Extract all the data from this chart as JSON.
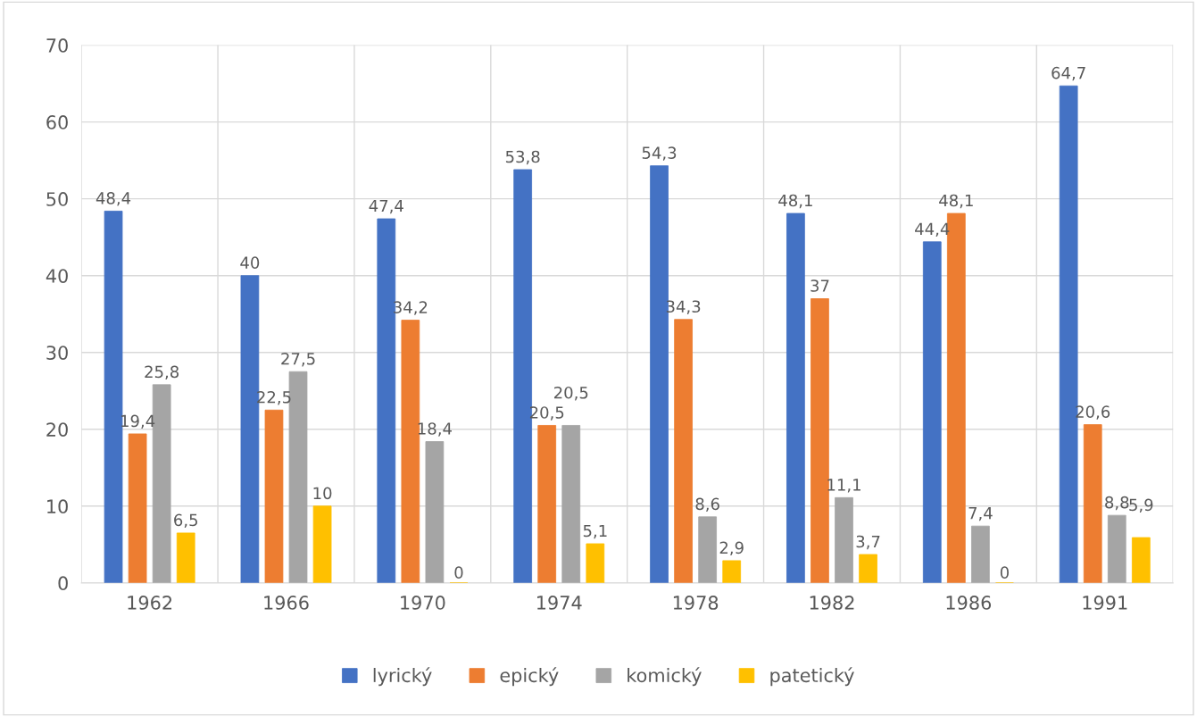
{
  "chart_data": {
    "type": "bar",
    "categories": [
      "1962",
      "1966",
      "1970",
      "1974",
      "1978",
      "1982",
      "1986",
      "1991"
    ],
    "series": [
      {
        "name": "lyrický",
        "color": "#4472c4",
        "values": [
          48.4,
          40,
          47.4,
          53.8,
          54.3,
          48.1,
          44.4,
          64.7
        ],
        "value_labels": [
          "48,4",
          "40",
          "47,4",
          "53,8",
          "54,3",
          "48,1",
          "44,4",
          "64,7"
        ]
      },
      {
        "name": "epický",
        "color": "#ed7d31",
        "values": [
          19.4,
          22.5,
          34.2,
          20.5,
          34.3,
          37,
          48.1,
          20.6
        ],
        "value_labels": [
          "19,4",
          "22,5",
          "34,2",
          "20,5",
          "34,3",
          "37",
          "48,1",
          "20,6"
        ]
      },
      {
        "name": "komický",
        "color": "#a5a5a5",
        "values": [
          25.8,
          27.5,
          18.4,
          20.5,
          8.6,
          11.1,
          7.4,
          8.8
        ],
        "value_labels": [
          "25,8",
          "27,5",
          "18,4",
          "20,5",
          "8,6",
          "11,1",
          "7,4",
          "8,8"
        ]
      },
      {
        "name": "patetický",
        "color": "#ffc000",
        "values": [
          6.5,
          10,
          0,
          5.1,
          2.9,
          3.7,
          0,
          5.9
        ],
        "value_labels": [
          "6,5",
          "10",
          "0",
          "5,1",
          "2,9",
          "3,7",
          "0",
          "5,9"
        ]
      }
    ],
    "ylim": [
      0,
      70
    ],
    "yticks": [
      0,
      10,
      20,
      30,
      40,
      50,
      60,
      70
    ],
    "grid": true,
    "legend": "bottom"
  }
}
